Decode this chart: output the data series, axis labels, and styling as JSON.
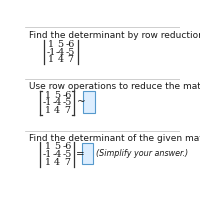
{
  "bg_color": "#ffffff",
  "text_color": "#1a1a1a",
  "gray_text": "#444444",
  "title1": "Find the determinant by row reduction to echelon form.",
  "title2": "Use row operations to reduce the matrix to echelon form.",
  "title3": "Find the determinant of the given matrix.",
  "matrix_rows": [
    [
      "1",
      "5",
      "-6"
    ],
    [
      "-1",
      "-4",
      "-5"
    ],
    [
      "1",
      "4",
      "7"
    ]
  ],
  "simplify_text": "(Simplify your answer.)",
  "sep_color": "#bbbbbb",
  "bracket_color": "#333333",
  "box_edge_color": "#5599cc",
  "box_face_color": "#ddeeff",
  "font_size_title": 6.5,
  "font_size_matrix": 6.8,
  "font_size_symbol": 7.5,
  "font_size_simplify": 5.8
}
